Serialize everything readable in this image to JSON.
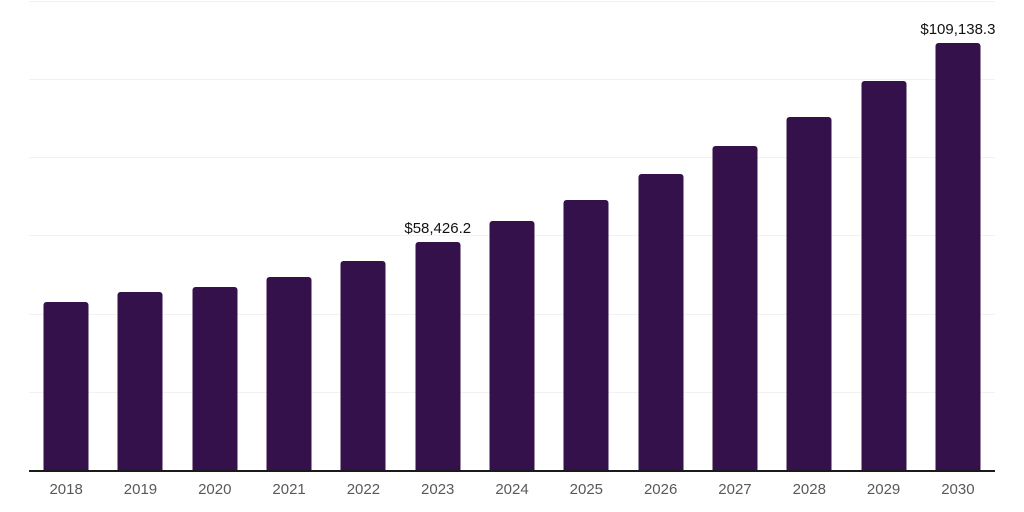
{
  "chart_data": {
    "type": "bar",
    "title": "",
    "xlabel": "",
    "ylabel": "",
    "categories": [
      "2018",
      "2019",
      "2020",
      "2021",
      "2022",
      "2023",
      "2024",
      "2025",
      "2026",
      "2027",
      "2028",
      "2029",
      "2030"
    ],
    "values": [
      43000,
      45500,
      46800,
      49400,
      53500,
      58426.2,
      63700,
      69100,
      75700,
      82900,
      90300,
      99500,
      109138.3
    ],
    "data_labels": [
      {
        "index": 5,
        "text": "$58,426.2"
      },
      {
        "index": 12,
        "text": "$109,138.3"
      }
    ],
    "ylim": [
      0,
      120000
    ],
    "gridline_interval": 20000,
    "grid": "horizontal",
    "y_axis_tick_labels_visible": false,
    "legend_position": "none"
  },
  "style": {
    "bar_color": "#34114a",
    "gridline_color": "#f2f2f2",
    "axis_line_color": "#1a1a1a",
    "tick_label_color": "#595959",
    "data_label_color": "#111111",
    "background_color": "#ffffff"
  }
}
